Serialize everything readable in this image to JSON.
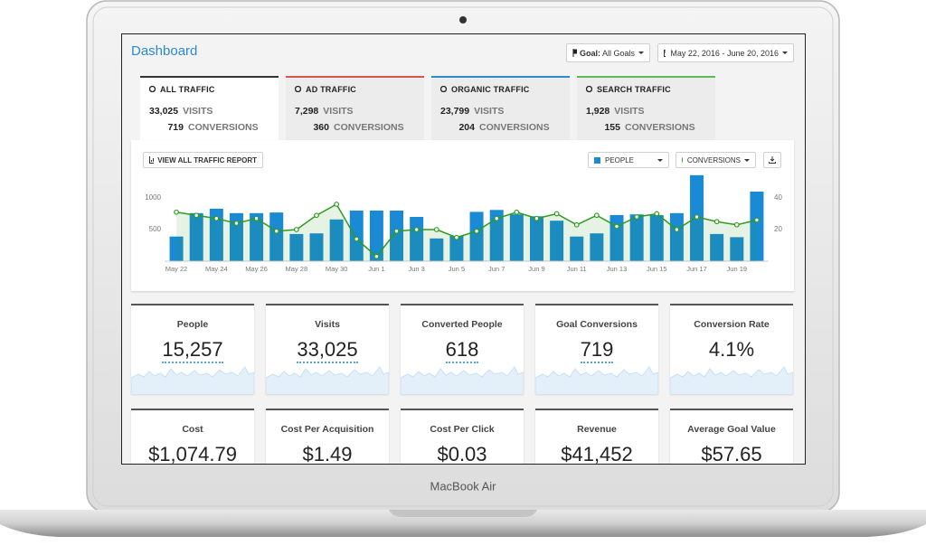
{
  "header": {
    "title": "Dashboard",
    "goal_label": "Goal:",
    "goal_value": "All Goals",
    "date_range": "May 22, 2016 - June 20, 2016"
  },
  "tabs": [
    {
      "title": "ALL TRAFFIC",
      "visits": "33,025",
      "visits_label": "VISITS",
      "conversions": "719",
      "conversions_label": "CONVERSIONS"
    },
    {
      "title": "AD TRAFFIC",
      "visits": "7,298",
      "visits_label": "VISITS",
      "conversions": "360",
      "conversions_label": "CONVERSIONS"
    },
    {
      "title": "ORGANIC TRAFFIC",
      "visits": "23,799",
      "visits_label": "VISITS",
      "conversions": "204",
      "conversions_label": "CONVERSIONS"
    },
    {
      "title": "SEARCH TRAFFIC",
      "visits": "1,928",
      "visits_label": "VISITS",
      "conversions": "155",
      "conversions_label": "CONVERSIONS"
    }
  ],
  "chart_panel": {
    "report_button": "VIEW ALL TRAFFIC REPORT"
  },
  "chart_data": {
    "type": "bar",
    "categories": [
      "May 22",
      null,
      "May 24",
      null,
      "May 26",
      null,
      "May 28",
      null,
      "May 30",
      null,
      "Jun 1",
      null,
      "Jun 3",
      null,
      "Jun 5",
      null,
      "Jun 7",
      null,
      "Jun 9",
      null,
      "Jun 11",
      null,
      "Jun 13",
      null,
      "Jun 15",
      null,
      "Jun 17",
      null,
      "Jun 19",
      null
    ],
    "series": [
      {
        "name": "PEOPLE",
        "type": "bar",
        "color": "#1a8ad4",
        "values": [
          390,
          760,
          830,
          760,
          760,
          770,
          430,
          440,
          660,
          800,
          800,
          800,
          700,
          360,
          400,
          780,
          810,
          740,
          710,
          640,
          390,
          440,
          730,
          740,
          730,
          760,
          1360,
          430,
          380,
          1100
        ]
      },
      {
        "name": "CONVERSIONS",
        "type": "line",
        "axis": "y2",
        "color": "#2e9a1f",
        "values": [
          31,
          29,
          27,
          24,
          27,
          19,
          20,
          29,
          36,
          14,
          3,
          19,
          20,
          20,
          15,
          19,
          27,
          31,
          27,
          30,
          23,
          29,
          22,
          28,
          30,
          20,
          28,
          25,
          23,
          26
        ]
      }
    ],
    "ylim": [
      0,
      1400
    ],
    "yticks": [
      500,
      1000
    ],
    "y2lim": [
      0,
      56
    ],
    "y2ticks": [
      20,
      40
    ]
  },
  "metrics": [
    {
      "label": "People",
      "value": "15,257"
    },
    {
      "label": "Visits",
      "value": "33,025"
    },
    {
      "label": "Converted People",
      "value": "618"
    },
    {
      "label": "Goal Conversions",
      "value": "719"
    },
    {
      "label": "Conversion Rate",
      "value": "4.1%"
    },
    {
      "label": "Cost",
      "value": "$1,074.79"
    },
    {
      "label": "Cost Per Acquisition",
      "value": "$1.49"
    },
    {
      "label": "Cost Per Click",
      "value": "$0.03"
    },
    {
      "label": "Revenue",
      "value": "$41,452"
    },
    {
      "label": "Average Goal Value",
      "value": "$57.65"
    }
  ],
  "device": {
    "label": "MacBook Air"
  }
}
